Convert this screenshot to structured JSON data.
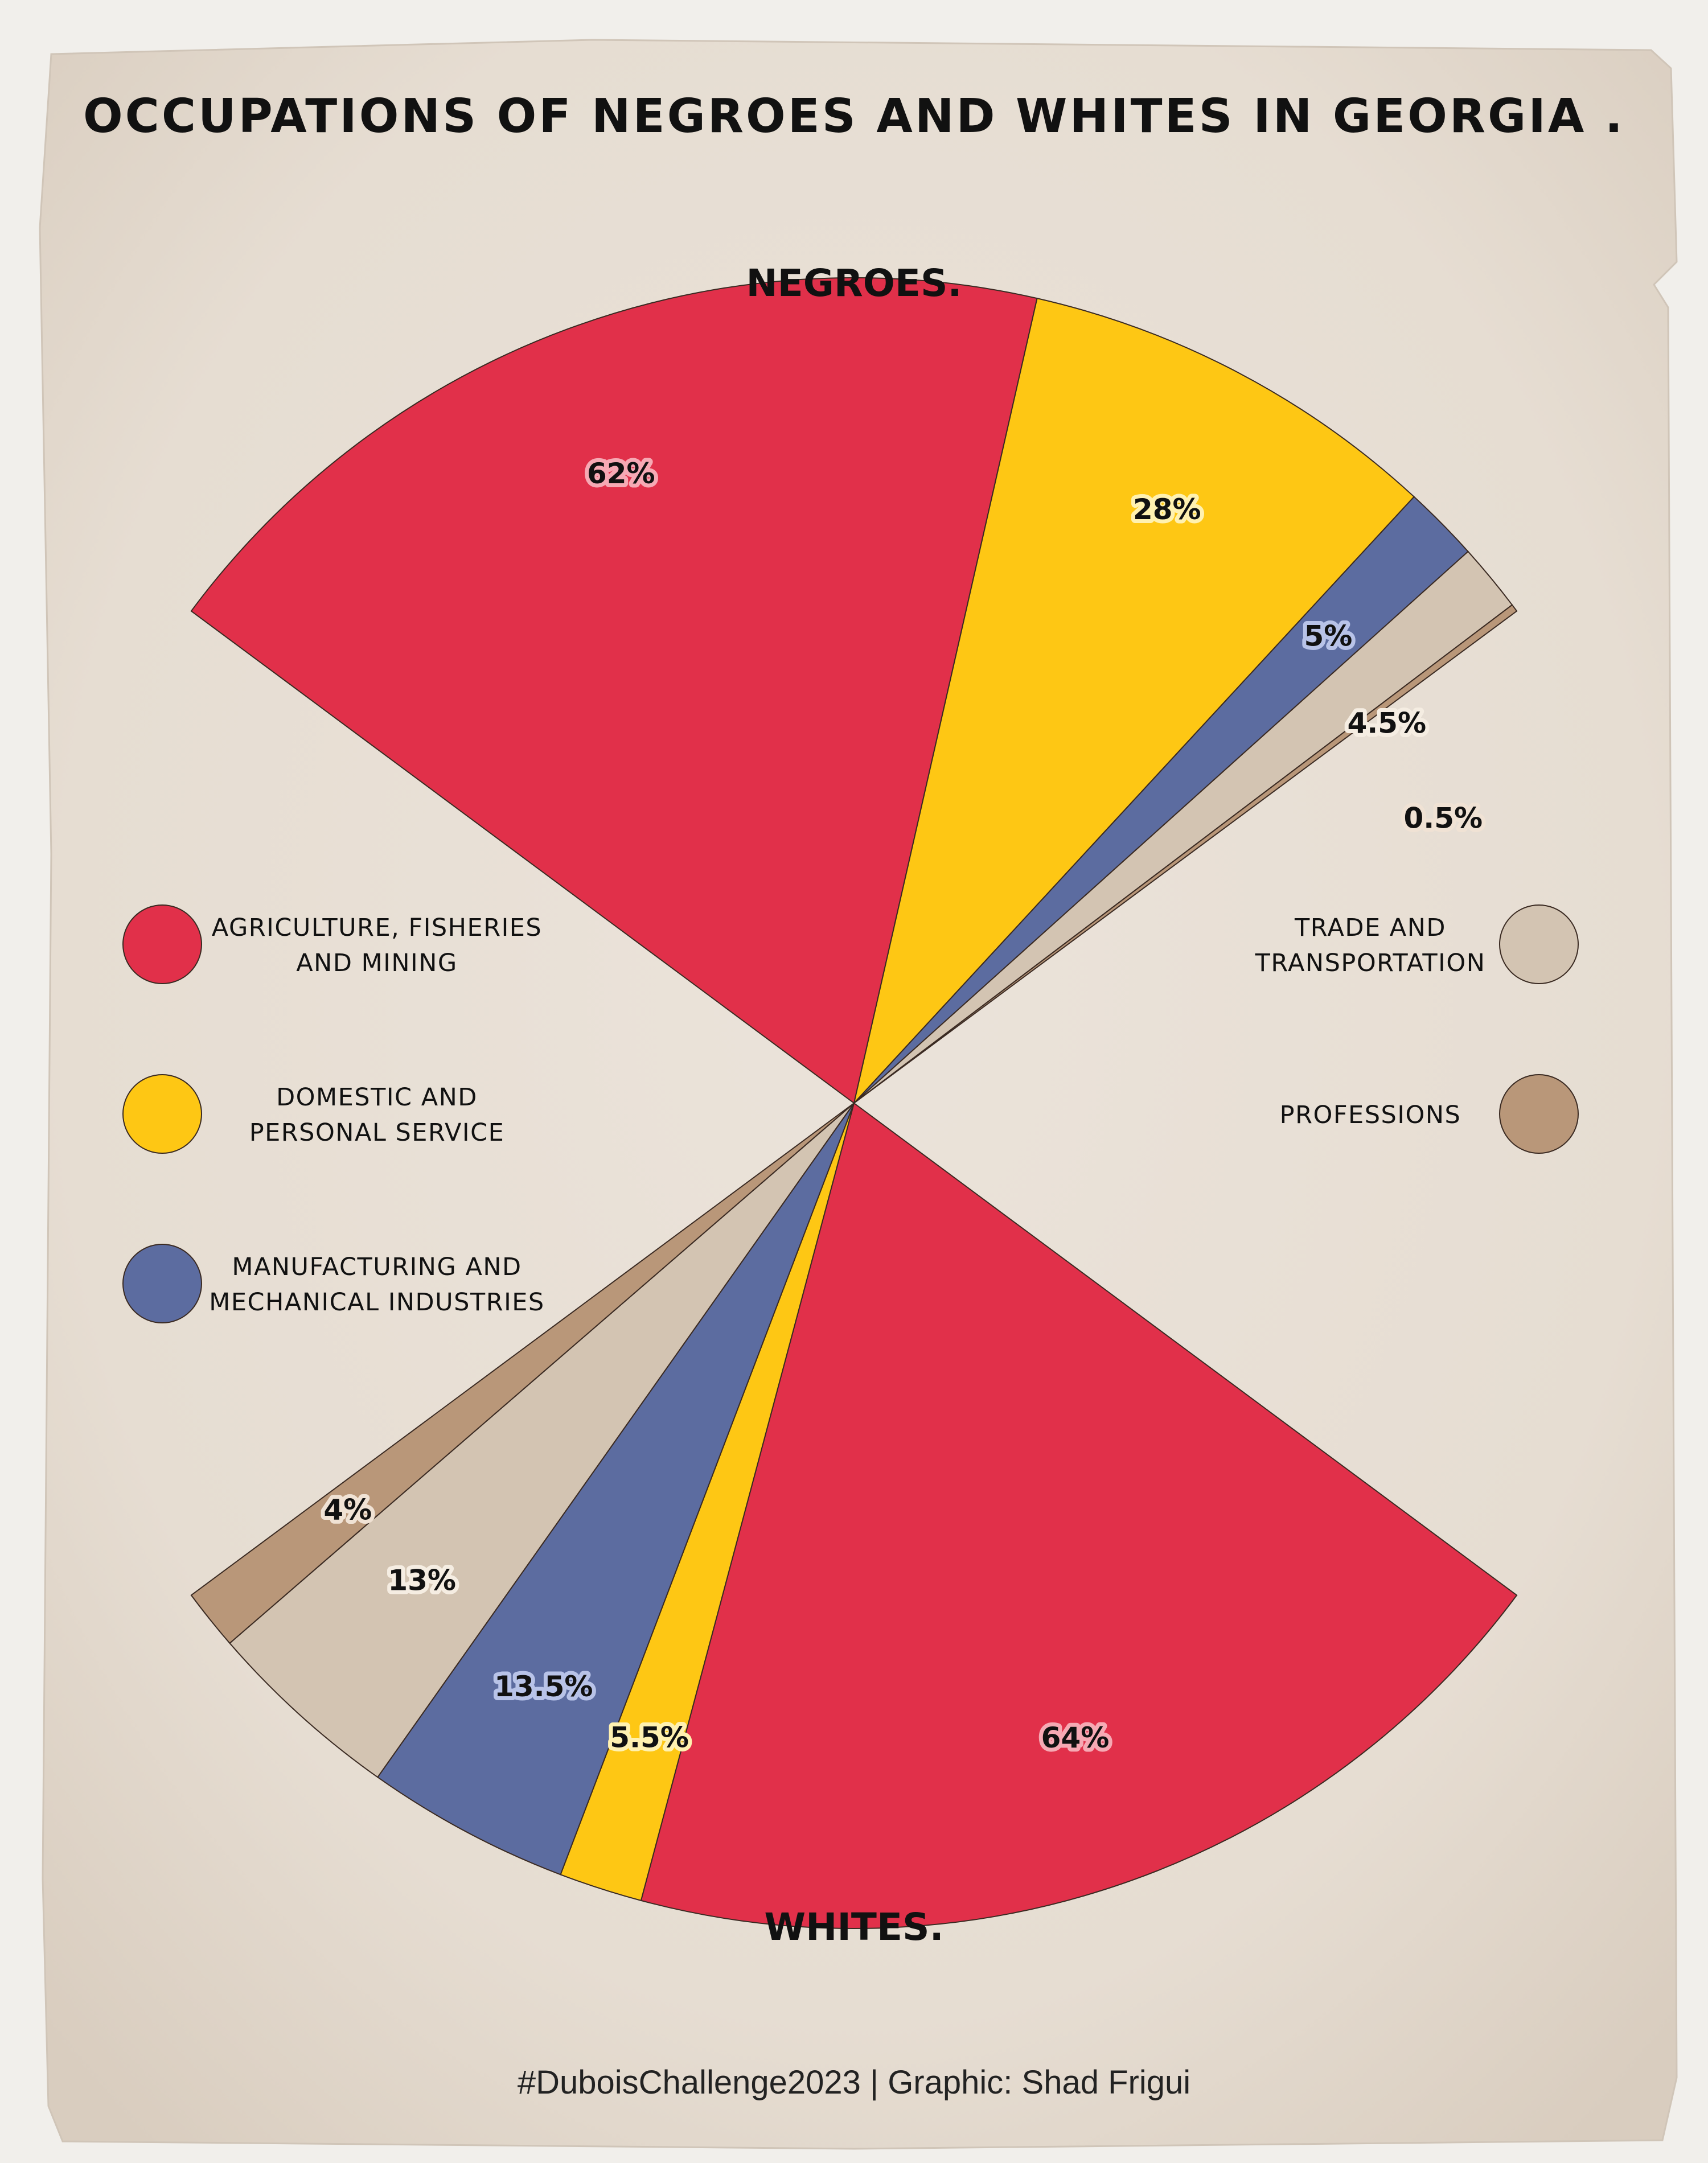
{
  "title": "OCCUPATIONS OF NEGROES AND WHITES IN GEORGIA .",
  "credit": "#DuboisChallenge2023 | Graphic: Shad Frigui",
  "chart_data": {
    "type": "pie",
    "groups": [
      {
        "name": "NEGROES.",
        "slices": [
          {
            "category": "Agriculture, Fisheries and Mining",
            "value": 62,
            "label": "62%"
          },
          {
            "category": "Domestic and Personal Service",
            "value": 28,
            "label": "28%"
          },
          {
            "category": "Manufacturing and Mechanical Industries",
            "value": 5,
            "label": "5%"
          },
          {
            "category": "Trade and Transportation",
            "value": 4.5,
            "label": "4.5%"
          },
          {
            "category": "Professions",
            "value": 0.5,
            "label": "0.5%"
          }
        ]
      },
      {
        "name": "WHITES.",
        "slices": [
          {
            "category": "Agriculture, Fisheries and Mining",
            "value": 64,
            "label": "64%"
          },
          {
            "category": "Domestic and Personal Service",
            "value": 5.5,
            "label": "5.5%"
          },
          {
            "category": "Manufacturing and Mechanical Industries",
            "value": 13.5,
            "label": "13.5%"
          },
          {
            "category": "Trade and Transportation",
            "value": 13,
            "label": "13%"
          },
          {
            "category": "Professions",
            "value": 4,
            "label": "4%"
          }
        ]
      }
    ],
    "legend": [
      {
        "lines": [
          "AGRICULTURE, FISHERIES",
          "AND MINING"
        ],
        "color": "#e1304a",
        "side": "left"
      },
      {
        "lines": [
          "DOMESTIC AND",
          "PERSONAL SERVICE"
        ],
        "color": "#fec714",
        "side": "left"
      },
      {
        "lines": [
          "MANUFACTURING AND",
          "MECHANICAL INDUSTRIES"
        ],
        "color": "#5c6ca0",
        "side": "left"
      },
      {
        "lines": [
          "TRADE AND",
          "TRANSPORTATION"
        ],
        "color": "#d3c4b2",
        "side": "right"
      },
      {
        "lines": [
          "PROFESSIONS"
        ],
        "color": "#b99779",
        "side": "right"
      }
    ]
  }
}
